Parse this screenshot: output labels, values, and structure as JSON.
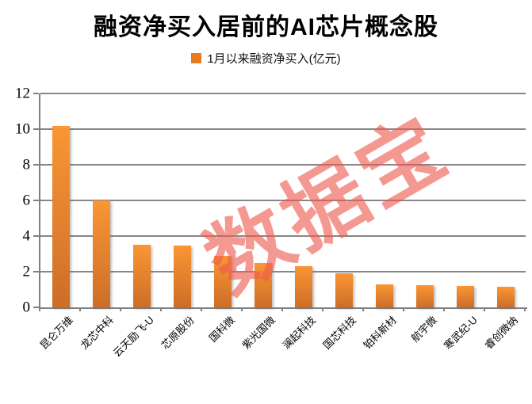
{
  "title": "融资净买入居前的AI芯片概念股",
  "legend": {
    "label": "1月以来融资净买入(亿元)"
  },
  "watermark": "数据宝",
  "colors": {
    "bar_top": "#FA9634",
    "bar_bottom": "#CD6E28",
    "legend_swatch": "#E8791F",
    "gridline": "#878787",
    "axis": "#7F7F7F",
    "text": "#000000",
    "watermark": "#EE5B50",
    "watermark_opacity": 0.62
  },
  "chart_data": {
    "type": "bar",
    "title": "融资净买入居前的AI芯片概念股",
    "series": [
      {
        "name": "1月以来融资净买入(亿元)",
        "values": [
          10.2,
          6.0,
          3.5,
          3.45,
          2.9,
          2.5,
          2.3,
          1.9,
          1.3,
          1.25,
          1.2,
          1.15
        ]
      }
    ],
    "categories": [
      "昆仑万维",
      "龙芯中科",
      "云天励飞-U",
      "芯原股份",
      "国科微",
      "紫光国微",
      "澜起科技",
      "国芯科技",
      "铂科新材",
      "航宇微",
      "寒武纪-U",
      "睿创微纳"
    ],
    "xlabel": "",
    "ylabel": "",
    "ylim": [
      0,
      12
    ],
    "yticks": [
      0,
      2,
      4,
      6,
      8,
      10,
      12
    ],
    "grid": true,
    "legend_position": "top",
    "annotations": [
      "数据宝"
    ]
  }
}
